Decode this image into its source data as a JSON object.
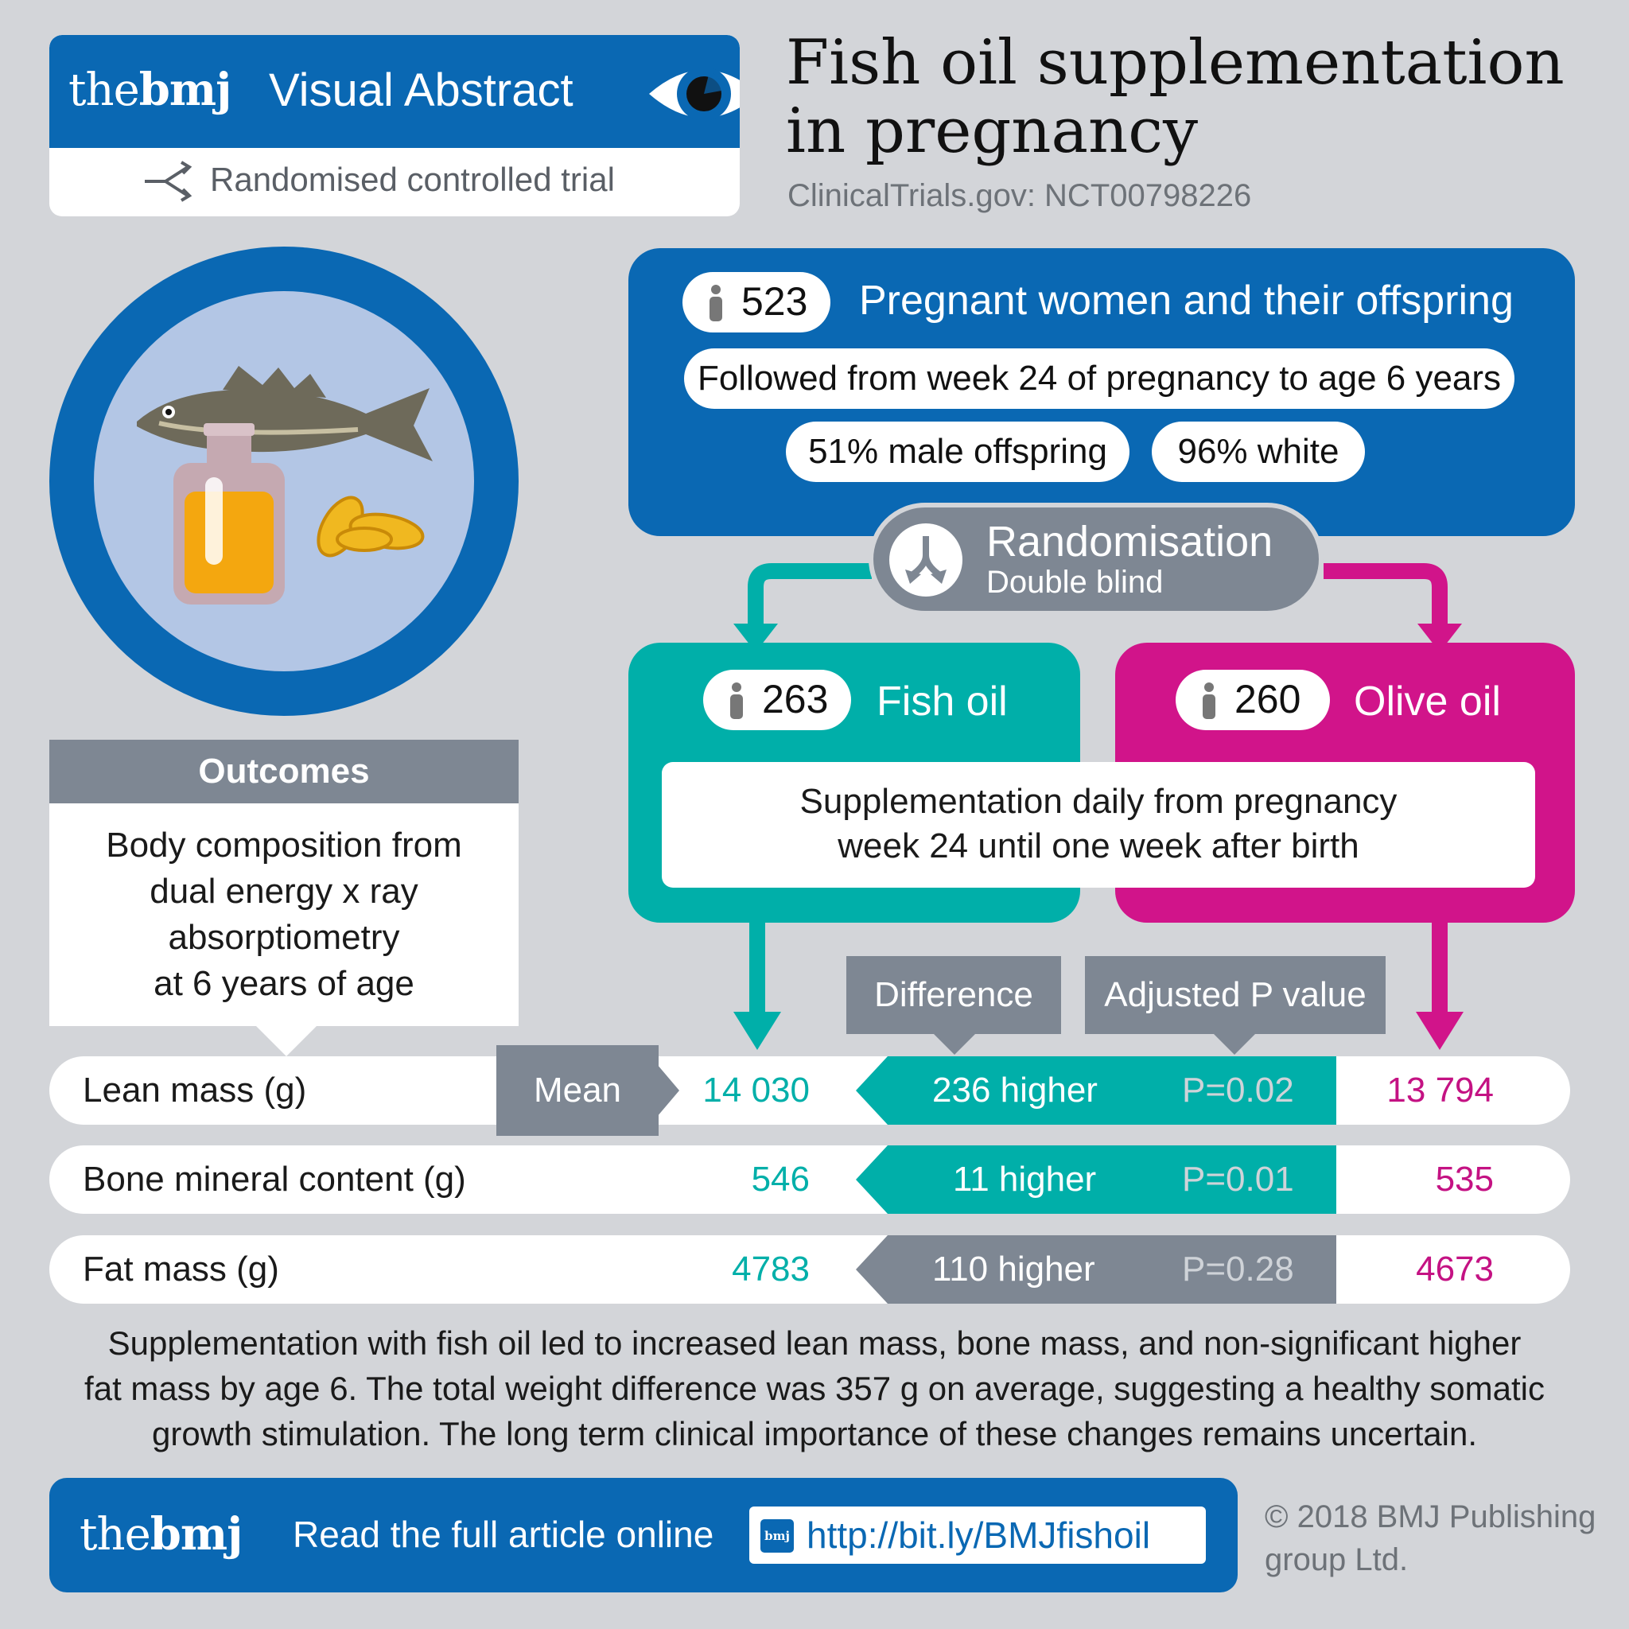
{
  "header": {
    "logo_the": "the",
    "logo_bmj": "bmj",
    "title": "Visual Abstract",
    "study_type": "Randomised controlled trial",
    "icons": [
      "eye-icon",
      "randomise-icon"
    ]
  },
  "main_title_line1": "Fish oil supplementation",
  "main_title_line2": "in pregnancy",
  "trial_id": "ClinicalTrials.gov: NCT00798226",
  "population": {
    "count": "523",
    "label": "Pregnant women and their offspring",
    "follow_up": "Followed from week 24 of pregnancy to age 6 years",
    "male": "51% male offspring",
    "white": "96% white"
  },
  "randomisation": {
    "title": "Randomisation",
    "subtitle": "Double blind"
  },
  "arms": {
    "fish": {
      "count": "263",
      "label": "Fish oil",
      "color": "#00afa9"
    },
    "olive": {
      "count": "260",
      "label": "Olive oil",
      "color": "#d1148a"
    },
    "supplementation_line1": "Supplementation daily from pregnancy",
    "supplementation_line2": "week 24 until one week after birth"
  },
  "outcomes": {
    "heading": "Outcomes",
    "line1": "Body composition from",
    "line2": "dual energy x ray",
    "line3": "absorptiometry",
    "line4": "at 6 years of age"
  },
  "table": {
    "mean_label": "Mean",
    "difference_label": "Difference",
    "pvalue_label": "Adjusted P value",
    "rows": [
      {
        "label": "Lean mass (g)",
        "fish": "14 030",
        "diff": "236 higher",
        "p": "P=0.02",
        "olive": "13 794",
        "significant": true
      },
      {
        "label": "Bone mineral content (g)",
        "fish": "546",
        "diff": "11 higher",
        "p": "P=0.01",
        "olive": "535",
        "significant": true
      },
      {
        "label": "Fat mass (g)",
        "fish": "4783",
        "diff": "110 higher",
        "p": "P=0.28",
        "olive": "4673",
        "significant": false
      }
    ]
  },
  "summary_line1": "Supplementation with fish oil led to increased lean mass, bone mass, and non-significant higher",
  "summary_line2": "fat mass by age 6. The total weight difference was 357 g on average, suggesting a healthy somatic",
  "summary_line3": "growth stimulation. The long term clinical importance of these changes remains uncertain.",
  "footer": {
    "logo_the": "the",
    "logo_bmj": "bmj",
    "read_text": "Read the full article online",
    "url_badge": "bmj",
    "url": "http://bit.ly/BMJfishoil",
    "copyright_line1": "© 2018 BMJ Publishing",
    "copyright_line2": "group Ltd."
  },
  "colors": {
    "bmj_blue": "#0a68b3",
    "fish_teal": "#00afa9",
    "olive_magenta": "#d1148a",
    "grey": "#7e8793",
    "background": "#d3d5d9"
  }
}
